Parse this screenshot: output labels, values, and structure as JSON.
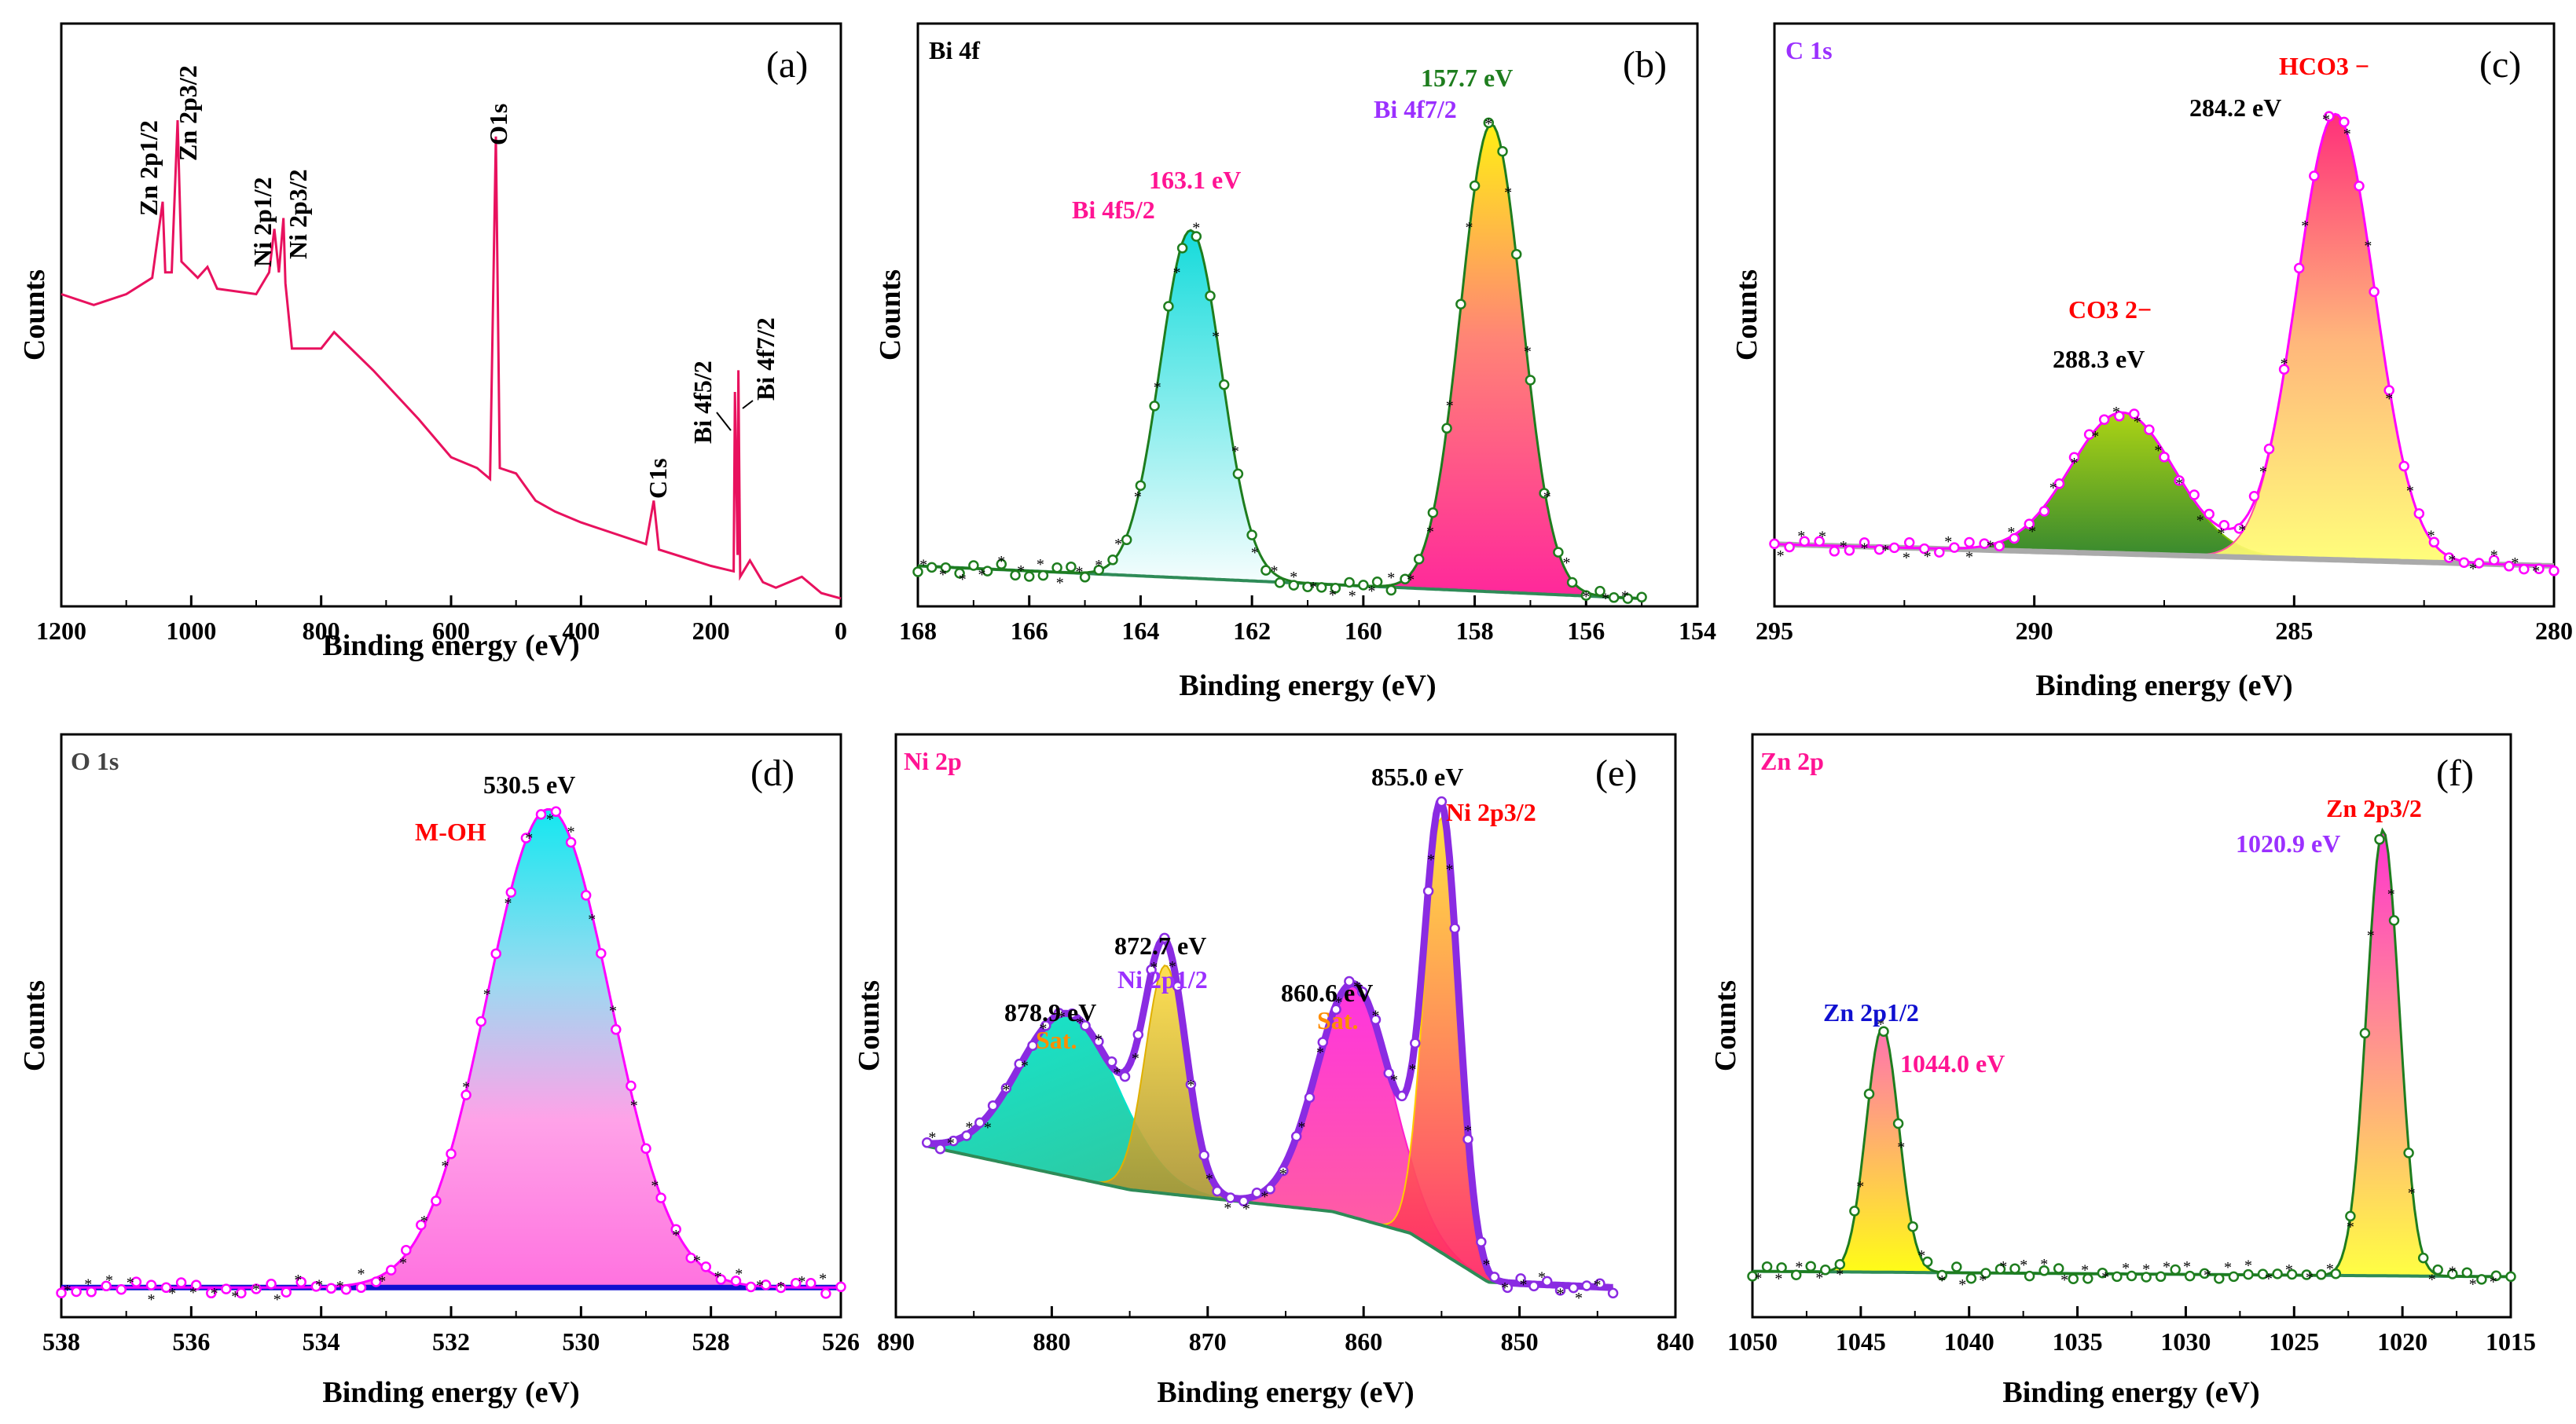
{
  "colors": {
    "survey": "#e8115e",
    "pink": "#ff1493",
    "green": "#1e7d1e",
    "purple": "#9b30ff",
    "red": "#ff0000",
    "orange": "#ff8c00",
    "blue": "#1010d0",
    "grey": "#444444"
  },
  "chart_data": [
    {
      "panel": "(a)",
      "type": "line",
      "title": "",
      "xlabel": "Binding energy (eV)",
      "ylabel": "Counts",
      "xlim": [
        1200,
        0
      ],
      "ylim": [
        0,
        100
      ],
      "xticks": [
        "1200",
        "1000",
        "800",
        "600",
        "400",
        "200",
        "0"
      ],
      "tick_values": [
        1200,
        1000,
        800,
        600,
        400,
        200,
        0
      ],
      "series": [
        {
          "name": "survey",
          "x": [
            1200,
            1150,
            1100,
            1060,
            1044,
            1040,
            1030,
            1021,
            1015,
            990,
            975,
            960,
            900,
            880,
            872,
            865,
            858,
            855,
            845,
            800,
            780,
            720,
            650,
            600,
            560,
            540,
            531,
            525,
            500,
            470,
            440,
            400,
            300,
            288,
            280,
            200,
            165,
            163.1,
            159,
            157.7,
            155,
            140,
            120,
            100,
            60,
            30,
            0
          ],
          "y": [
            56,
            54,
            56,
            59,
            73,
            60,
            60,
            88,
            62,
            59,
            61,
            57,
            56,
            60,
            68,
            60,
            70,
            58,
            46,
            46,
            49,
            42,
            33,
            26,
            24,
            22,
            85,
            24,
            23,
            18,
            16,
            14,
            10,
            18,
            9,
            6,
            5,
            38,
            8,
            42,
            4,
            7,
            3,
            2,
            4,
            1,
            0
          ]
        }
      ],
      "labels": [
        "Zn 2p1/2",
        "Zn 2p3/2",
        "Ni 2p1/2",
        "Ni 2p3/2",
        "O1s",
        "C1s",
        "Bi 4f5/2",
        "Bi 4f7/2"
      ],
      "peak_x": [
        1044,
        1021,
        872,
        855,
        531,
        288,
        163.1,
        157.7
      ],
      "peak_y": [
        73,
        88,
        68,
        70,
        85,
        18,
        38,
        42
      ]
    },
    {
      "panel": "(b)",
      "type": "line",
      "title": "Bi 4f",
      "xlabel": "Binding energy (eV)",
      "ylabel": "Counts",
      "xlim": [
        168,
        154
      ],
      "ylim": [
        0,
        100
      ],
      "xticks": [
        "168",
        "166",
        "164",
        "162",
        "160",
        "158",
        "156",
        "154"
      ],
      "tick_values": [
        168,
        166,
        164,
        162,
        160,
        158,
        156,
        154
      ],
      "fit_range": [
        168,
        155
      ],
      "background": [
        [
          168,
          6
        ],
        [
          155,
          0
        ]
      ],
      "peaks": [
        {
          "name": "Bi 4f5/2",
          "center": 163.1,
          "height": 64,
          "width": 0.55,
          "color": "#00d8d8"
        },
        {
          "name": "Bi 4f7/2",
          "center": 157.7,
          "height": 86,
          "width": 0.55,
          "color": "#ff1493"
        }
      ],
      "labels": [
        "Bi 4f5/2",
        "163.1 eV",
        "Bi 4f7/2",
        "157.7 eV"
      ],
      "peak_x": [
        163.1,
        157.7
      ]
    },
    {
      "panel": "(c)",
      "type": "line",
      "title": "C 1s",
      "xlabel": "Binding energy (eV)",
      "ylabel": "Counts",
      "xlim": [
        295,
        280
      ],
      "ylim": [
        0,
        100
      ],
      "xticks": [
        "295",
        "290",
        "285",
        "280"
      ],
      "tick_values": [
        295,
        290,
        285,
        280
      ],
      "fit_range": [
        295,
        280
      ],
      "background": [
        [
          295,
          10
        ],
        [
          280,
          6
        ]
      ],
      "peaks": [
        {
          "name": "CO3 2-",
          "center": 288.3,
          "height": 26,
          "width": 1.0,
          "color": "#7cbf00"
        },
        {
          "name": "HCO3 -",
          "center": 284.2,
          "height": 82,
          "width": 0.75,
          "color": "#ff4fa0"
        }
      ],
      "labels": [
        "CO3 2−",
        "288.3 eV",
        "HCO3 −",
        "284.2 eV"
      ],
      "peak_x": [
        288.3,
        284.2
      ]
    },
    {
      "panel": "(d)",
      "type": "line",
      "title": "O 1s",
      "xlabel": "Binding energy (eV)",
      "ylabel": "Counts",
      "xlim": [
        538,
        526
      ],
      "ylim": [
        0,
        100
      ],
      "xticks": [
        "538",
        "536",
        "534",
        "532",
        "530",
        "528",
        "526"
      ],
      "tick_values": [
        538,
        536,
        534,
        532,
        530,
        528,
        526
      ],
      "fit_range": [
        538,
        526
      ],
      "background": [
        [
          538,
          4
        ],
        [
          526,
          4
        ]
      ],
      "peaks": [
        {
          "name": "M-OH",
          "center": 530.5,
          "height": 88,
          "width": 0.95,
          "color": "#00e5ee"
        }
      ],
      "labels": [
        "M-OH",
        "530.5 eV"
      ],
      "peak_x": [
        530.5
      ]
    },
    {
      "panel": "(e)",
      "type": "line",
      "title": "Ni 2p",
      "xlabel": "Binding energy (eV)",
      "ylabel": "Counts",
      "xlim": [
        890,
        840
      ],
      "ylim": [
        0,
        100
      ],
      "xticks": [
        "890",
        "880",
        "870",
        "860",
        "850",
        "840"
      ],
      "tick_values": [
        890,
        880,
        870,
        860,
        850,
        840
      ],
      "fit_range": [
        888,
        844
      ],
      "background": [
        [
          888,
          30
        ],
        [
          875,
          22
        ],
        [
          862,
          18
        ],
        [
          857,
          14
        ],
        [
          852,
          5
        ],
        [
          844,
          4
        ]
      ],
      "peaks": [
        {
          "name": "878.9 eV Sat.",
          "center": 878.9,
          "height": 30,
          "width": 3.2,
          "color": "#00e5cc"
        },
        {
          "name": "Ni 2p1/2",
          "center": 872.7,
          "height": 42,
          "width": 1.3,
          "color": "#e0b000"
        },
        {
          "name": "860.6 eV Sat.",
          "center": 860.6,
          "height": 43,
          "width": 2.4,
          "color": "#ff1dce"
        },
        {
          "name": "Ni 2p3/2",
          "center": 855.0,
          "height": 80,
          "width": 1.1,
          "color": "#ffcc00"
        }
      ],
      "labels": [
        "878.9 eV",
        "Sat.",
        "872.7 eV",
        "Ni 2p1/2",
        "860.6 eV",
        "Sat.",
        "855.0 eV",
        "Ni 2p3/2"
      ],
      "peak_x": [
        878.9,
        872.7,
        860.6,
        855.0
      ]
    },
    {
      "panel": "(f)",
      "type": "line",
      "title": "Zn 2p",
      "xlabel": "Binding energy (eV)",
      "ylabel": "Counts",
      "xlim": [
        1050,
        1015
      ],
      "ylim": [
        0,
        100
      ],
      "xticks": [
        "1050",
        "1045",
        "1040",
        "1035",
        "1030",
        "1025",
        "1020",
        "1015"
      ],
      "tick_values": [
        1050,
        1045,
        1040,
        1035,
        1030,
        1025,
        1020,
        1015
      ],
      "fit_range": [
        1050,
        1015
      ],
      "background": [
        [
          1050,
          7
        ],
        [
          1015,
          6
        ]
      ],
      "peaks": [
        {
          "name": "Zn 2p1/2",
          "center": 1044.0,
          "height": 45,
          "width": 0.75,
          "color": "#ffff00"
        },
        {
          "name": "Zn 2p3/2",
          "center": 1020.9,
          "height": 82,
          "width": 0.75,
          "color": "#ff1dce"
        }
      ],
      "labels": [
        "Zn 2p1/2",
        "1044.0 eV",
        "Zn 2p3/2",
        "1020.9 eV"
      ],
      "peak_x": [
        1044.0,
        1020.9
      ]
    }
  ]
}
